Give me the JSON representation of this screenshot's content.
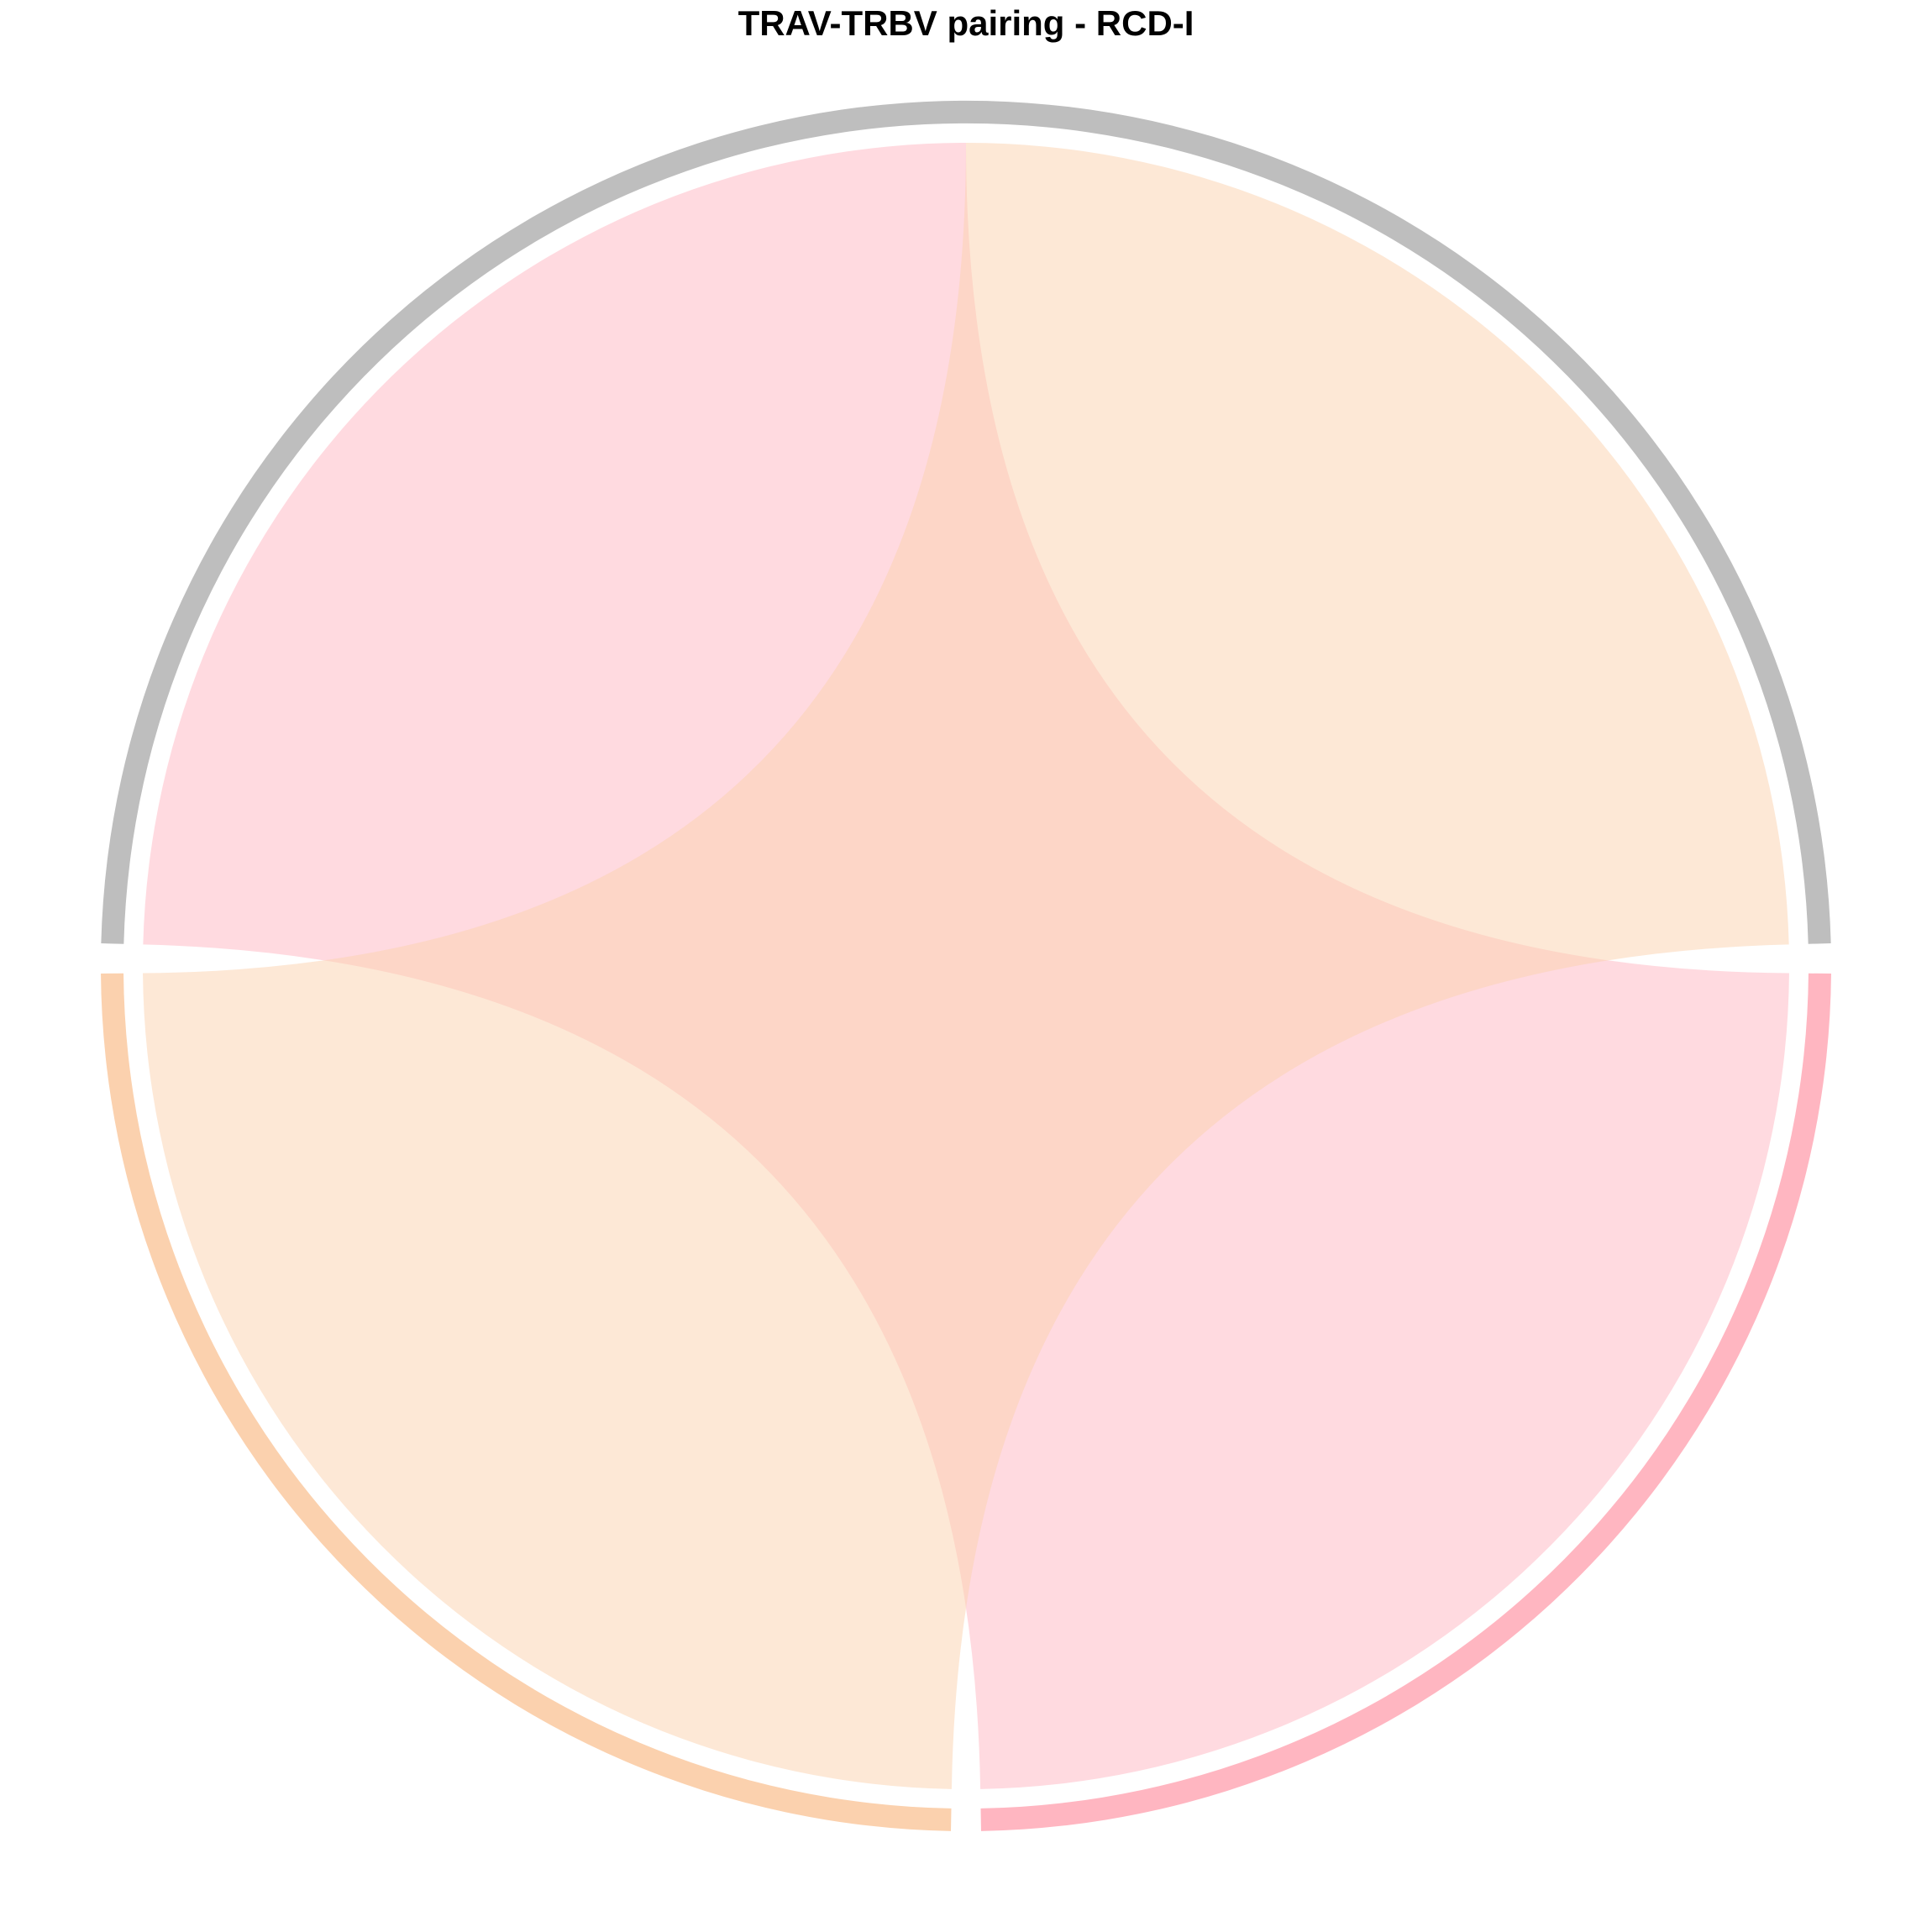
{
  "chart_data": {
    "type": "chord",
    "title": "TRAV-TRBV pairing - RCD-I",
    "sectors": [
      {
        "name": "",
        "value": 2,
        "color": "#bebebe"
      },
      {
        "name": "",
        "value": 1,
        "color": "#ffb6c1"
      },
      {
        "name": "",
        "value": 1,
        "color": "#fbd1ae"
      }
    ],
    "links": [
      {
        "from": 0,
        "to": 1,
        "value": 1,
        "color": "#ffb6c1"
      },
      {
        "from": 0,
        "to": 2,
        "value": 1,
        "color": "#fbd1ae"
      }
    ],
    "legend": "none"
  }
}
